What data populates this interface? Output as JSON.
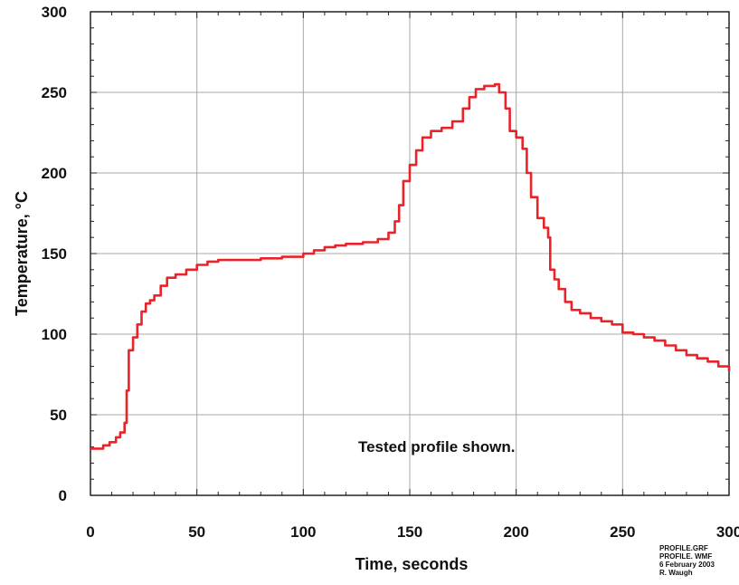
{
  "chart_data": {
    "type": "line",
    "xlabel": "Time, seconds",
    "ylabel": "Temperature, °C",
    "xlim": [
      0,
      300
    ],
    "ylim": [
      0,
      300
    ],
    "x_ticks": [
      0,
      50,
      100,
      150,
      200,
      250,
      300
    ],
    "y_ticks": [
      0,
      50,
      100,
      150,
      200,
      250,
      300
    ],
    "grid": true,
    "annotation": "Tested profile shown.",
    "series": [
      {
        "color": "#e8232a",
        "points": [
          [
            0,
            29
          ],
          [
            4,
            29
          ],
          [
            6,
            31
          ],
          [
            9,
            33
          ],
          [
            12,
            36
          ],
          [
            14,
            39
          ],
          [
            16,
            45
          ],
          [
            17,
            65
          ],
          [
            18,
            90
          ],
          [
            20,
            98
          ],
          [
            22,
            106
          ],
          [
            24,
            114
          ],
          [
            26,
            119
          ],
          [
            28,
            121
          ],
          [
            30,
            124
          ],
          [
            33,
            130
          ],
          [
            36,
            135
          ],
          [
            40,
            137
          ],
          [
            45,
            140
          ],
          [
            50,
            143
          ],
          [
            55,
            145
          ],
          [
            60,
            146
          ],
          [
            70,
            146
          ],
          [
            80,
            147
          ],
          [
            90,
            148
          ],
          [
            100,
            150
          ],
          [
            105,
            152
          ],
          [
            110,
            154
          ],
          [
            115,
            155
          ],
          [
            120,
            156
          ],
          [
            128,
            157
          ],
          [
            135,
            159
          ],
          [
            140,
            163
          ],
          [
            143,
            170
          ],
          [
            145,
            180
          ],
          [
            147,
            195
          ],
          [
            150,
            205
          ],
          [
            153,
            214
          ],
          [
            156,
            222
          ],
          [
            160,
            226
          ],
          [
            165,
            228
          ],
          [
            170,
            232
          ],
          [
            175,
            240
          ],
          [
            178,
            247
          ],
          [
            181,
            252
          ],
          [
            185,
            254
          ],
          [
            190,
            255
          ],
          [
            192,
            250
          ],
          [
            195,
            240
          ],
          [
            197,
            226
          ],
          [
            200,
            222
          ],
          [
            203,
            215
          ],
          [
            205,
            200
          ],
          [
            207,
            185
          ],
          [
            210,
            172
          ],
          [
            213,
            166
          ],
          [
            215,
            160
          ],
          [
            216,
            140
          ],
          [
            218,
            134
          ],
          [
            220,
            128
          ],
          [
            223,
            120
          ],
          [
            226,
            115
          ],
          [
            230,
            113
          ],
          [
            235,
            110
          ],
          [
            240,
            108
          ],
          [
            245,
            106
          ],
          [
            250,
            101
          ],
          [
            255,
            100
          ],
          [
            260,
            98
          ],
          [
            265,
            96
          ],
          [
            270,
            93
          ],
          [
            275,
            90
          ],
          [
            280,
            87
          ],
          [
            285,
            85
          ],
          [
            290,
            83
          ],
          [
            295,
            80
          ],
          [
            300,
            77
          ]
        ]
      }
    ]
  },
  "footnote": {
    "line1": "PROFILE.GRF",
    "line2": "PROFILE. WMF",
    "line3": "6 February 2003",
    "line4": "R. Waugh"
  },
  "colors": {
    "grid": "#a8a8a8",
    "axis": "#222222",
    "line": "#e8232a"
  }
}
